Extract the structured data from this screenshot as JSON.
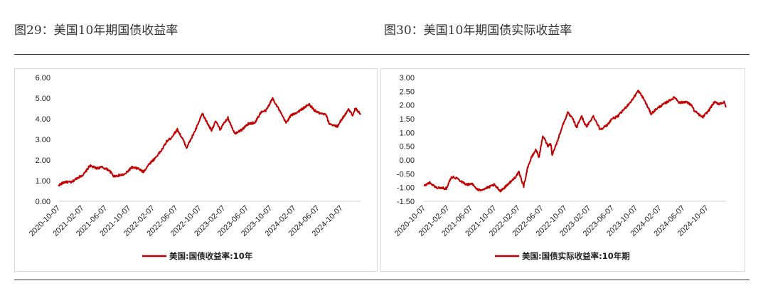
{
  "titles": {
    "left": "图29：美国10年期国债收益率",
    "right": "图30：美国10年期国债实际收益率"
  },
  "chart_data": [
    {
      "type": "line",
      "title": "",
      "color": "#c00000",
      "ylim": [
        0,
        6
      ],
      "yticks": [
        "0.00",
        "1.00",
        "2.00",
        "3.00",
        "4.00",
        "5.00",
        "6.00"
      ],
      "xlim": [
        "2020-10-07",
        "2025-01-15"
      ],
      "xticks": [
        "2020-10-07",
        "2021-02-07",
        "2021-06-07",
        "2021-10-07",
        "2022-02-07",
        "2022-06-07",
        "2022-10-07",
        "2023-02-07",
        "2023-06-07",
        "2023-10-07",
        "2024-02-07",
        "2024-06-07",
        "2024-10-07"
      ],
      "legend": "top",
      "series": [
        {
          "name": "美国:国债收益率:10年",
          "points": [
            [
              "2020-10-07",
              0.77
            ],
            [
              "2020-11-10",
              0.94
            ],
            [
              "2020-12-15",
              0.92
            ],
            [
              "2021-01-12",
              1.13
            ],
            [
              "2021-02-15",
              1.3
            ],
            [
              "2021-03-19",
              1.73
            ],
            [
              "2021-04-20",
              1.6
            ],
            [
              "2021-05-20",
              1.65
            ],
            [
              "2021-06-25",
              1.52
            ],
            [
              "2021-07-20",
              1.22
            ],
            [
              "2021-08-20",
              1.26
            ],
            [
              "2021-09-15",
              1.3
            ],
            [
              "2021-10-20",
              1.64
            ],
            [
              "2021-11-25",
              1.58
            ],
            [
              "2021-12-20",
              1.42
            ],
            [
              "2022-01-20",
              1.82
            ],
            [
              "2022-02-15",
              2.05
            ],
            [
              "2022-03-25",
              2.48
            ],
            [
              "2022-04-20",
              2.9
            ],
            [
              "2022-05-10",
              3.05
            ],
            [
              "2022-06-14",
              3.48
            ],
            [
              "2022-07-15",
              2.95
            ],
            [
              "2022-08-01",
              2.6
            ],
            [
              "2022-08-20",
              2.95
            ],
            [
              "2022-09-20",
              3.55
            ],
            [
              "2022-10-21",
              4.25
            ],
            [
              "2022-11-15",
              3.8
            ],
            [
              "2022-12-07",
              3.45
            ],
            [
              "2022-12-30",
              3.88
            ],
            [
              "2023-01-20",
              3.48
            ],
            [
              "2023-03-02",
              4.05
            ],
            [
              "2023-04-06",
              3.3
            ],
            [
              "2023-05-10",
              3.45
            ],
            [
              "2023-06-15",
              3.75
            ],
            [
              "2023-07-20",
              3.82
            ],
            [
              "2023-08-20",
              4.32
            ],
            [
              "2023-09-15",
              4.4
            ],
            [
              "2023-10-19",
              4.99
            ],
            [
              "2023-11-15",
              4.55
            ],
            [
              "2023-12-27",
              3.8
            ],
            [
              "2024-01-20",
              4.15
            ],
            [
              "2024-02-20",
              4.3
            ],
            [
              "2024-04-25",
              4.7
            ],
            [
              "2024-05-20",
              4.42
            ],
            [
              "2024-06-20",
              4.25
            ],
            [
              "2024-07-20",
              4.2
            ],
            [
              "2024-08-05",
              3.78
            ],
            [
              "2024-09-16",
              3.62
            ],
            [
              "2024-10-15",
              4.05
            ],
            [
              "2024-11-15",
              4.45
            ],
            [
              "2024-12-05",
              4.18
            ],
            [
              "2024-12-20",
              4.52
            ],
            [
              "2025-01-08",
              4.3
            ],
            [
              "2025-01-15",
              4.2
            ]
          ]
        }
      ]
    },
    {
      "type": "line",
      "title": "",
      "color": "#c00000",
      "ylim": [
        -1.5,
        3
      ],
      "yticks": [
        "-1.50",
        "-1.00",
        "-0.50",
        "0.00",
        "0.50",
        "1.00",
        "1.50",
        "2.00",
        "2.50",
        "3.00"
      ],
      "xlim": [
        "2020-10-07",
        "2025-01-15"
      ],
      "xticks": [
        "2020-10-07",
        "2021-02-07",
        "2021-06-07",
        "2021-10-07",
        "2022-02-07",
        "2022-06-07",
        "2022-10-07",
        "2023-02-07",
        "2023-06-07",
        "2023-10-07",
        "2024-02-07",
        "2024-06-07",
        "2024-10-07"
      ],
      "legend": "top",
      "series": [
        {
          "name": "美国:国债实际收益率:10年期",
          "points": [
            [
              "2020-10-07",
              -0.95
            ],
            [
              "2020-11-05",
              -0.82
            ],
            [
              "2020-12-10",
              -1.0
            ],
            [
              "2021-01-05",
              -1.02
            ],
            [
              "2021-02-01",
              -1.03
            ],
            [
              "2021-02-25",
              -0.62
            ],
            [
              "2021-03-25",
              -0.65
            ],
            [
              "2021-04-20",
              -0.78
            ],
            [
              "2021-05-20",
              -0.9
            ],
            [
              "2021-06-10",
              -0.85
            ],
            [
              "2021-07-15",
              -1.1
            ],
            [
              "2021-08-15",
              -1.05
            ],
            [
              "2021-09-10",
              -0.98
            ],
            [
              "2021-10-05",
              -0.9
            ],
            [
              "2021-11-05",
              -1.12
            ],
            [
              "2021-11-25",
              -1.02
            ],
            [
              "2021-12-15",
              -0.88
            ],
            [
              "2022-01-10",
              -0.72
            ],
            [
              "2022-02-10",
              -0.45
            ],
            [
              "2022-03-07",
              -0.95
            ],
            [
              "2022-03-28",
              -0.25
            ],
            [
              "2022-04-20",
              0.15
            ],
            [
              "2022-05-10",
              0.38
            ],
            [
              "2022-05-25",
              0.1
            ],
            [
              "2022-06-14",
              0.88
            ],
            [
              "2022-07-10",
              0.52
            ],
            [
              "2022-07-25",
              0.6
            ],
            [
              "2022-08-01",
              0.2
            ],
            [
              "2022-08-25",
              0.62
            ],
            [
              "2022-09-20",
              1.18
            ],
            [
              "2022-10-20",
              1.72
            ],
            [
              "2022-11-15",
              1.5
            ],
            [
              "2022-12-05",
              1.18
            ],
            [
              "2022-12-30",
              1.6
            ],
            [
              "2023-01-25",
              1.2
            ],
            [
              "2023-03-02",
              1.6
            ],
            [
              "2023-04-05",
              1.12
            ],
            [
              "2023-05-10",
              1.25
            ],
            [
              "2023-06-05",
              1.5
            ],
            [
              "2023-07-05",
              1.58
            ],
            [
              "2023-08-20",
              1.95
            ],
            [
              "2023-09-15",
              2.15
            ],
            [
              "2023-10-19",
              2.52
            ],
            [
              "2023-11-15",
              2.25
            ],
            [
              "2023-12-25",
              1.68
            ],
            [
              "2024-01-20",
              1.85
            ],
            [
              "2024-02-20",
              2.0
            ],
            [
              "2024-04-25",
              2.28
            ],
            [
              "2024-05-20",
              2.08
            ],
            [
              "2024-06-20",
              2.12
            ],
            [
              "2024-07-20",
              2.0
            ],
            [
              "2024-08-05",
              1.78
            ],
            [
              "2024-09-16",
              1.55
            ],
            [
              "2024-10-15",
              1.78
            ],
            [
              "2024-11-15",
              2.1
            ],
            [
              "2024-12-10",
              2.05
            ],
            [
              "2025-01-05",
              2.1
            ],
            [
              "2025-01-15",
              1.92
            ]
          ]
        }
      ]
    }
  ]
}
